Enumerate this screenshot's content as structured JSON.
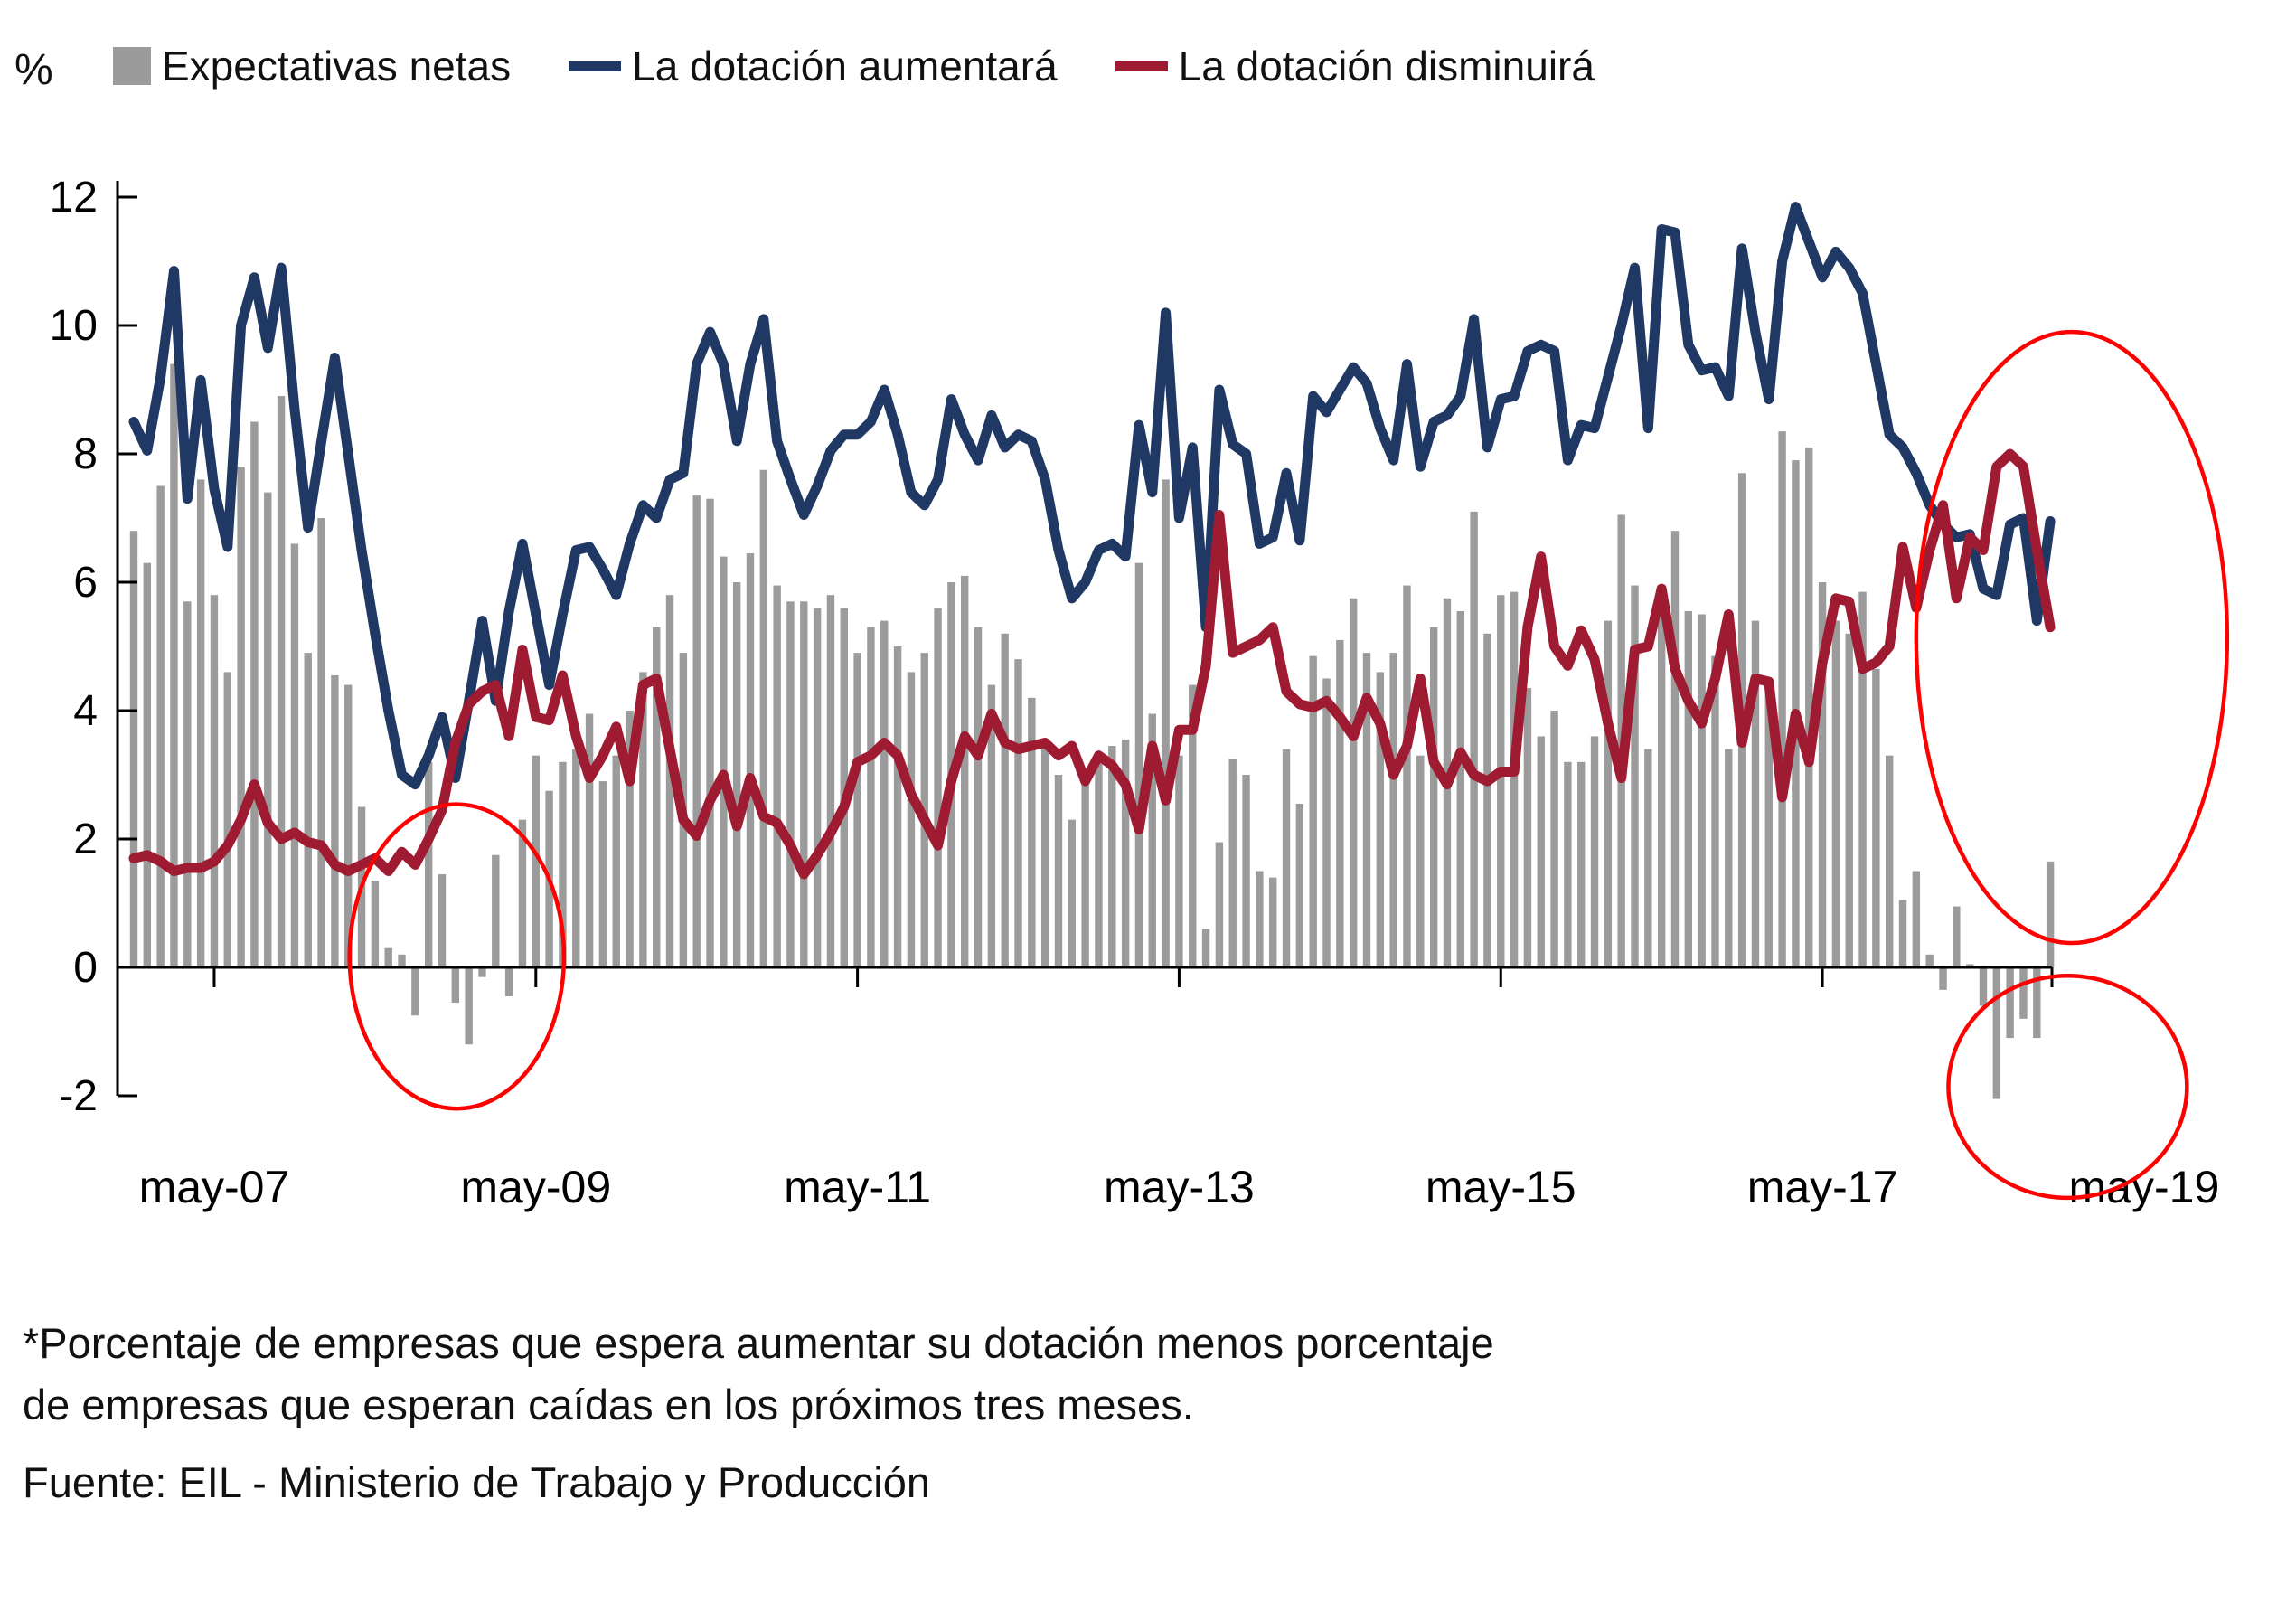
{
  "legend": {
    "percent_label": "%",
    "items": [
      {
        "label": "Expectativas netas",
        "type": "bar",
        "color": "#9B9B9B"
      },
      {
        "label": "La dotación aumentará",
        "type": "line",
        "color": "#1F3864"
      },
      {
        "label": "La dotación disminuirá",
        "type": "line",
        "color": "#9E1B32"
      }
    ]
  },
  "footnote_line1": "*Porcentaje de empresas que espera aumentar su dotación menos porcentaje",
  "footnote_line2": "de empresas que esperan caídas en los próximos tres meses.",
  "source_line": "Fuente: EIL - Ministerio de Trabajo y Producción",
  "chart_data": {
    "type": "bar",
    "subtype": "combo-bar-and-lines",
    "frequency": "monthly",
    "start_month": "2006-11",
    "n_points": 144,
    "x_axis_tick_labels": [
      "may-07",
      "may-09",
      "may-11",
      "may-13",
      "may-15",
      "may-17",
      "may-19"
    ],
    "x_axis_tick_month_indices": [
      6,
      30,
      54,
      78,
      102,
      126,
      150
    ],
    "y_ticks": [
      12,
      10,
      8,
      6,
      4,
      2,
      0,
      -2
    ],
    "ylim": [
      -2.4,
      12.3
    ],
    "grid": false,
    "legend_position": "top",
    "axis_color": "#000000",
    "annotation_color": "#FF0000",
    "series": [
      {
        "name": "Expectativas netas",
        "type": "bar",
        "color": "#9B9B9B",
        "values": [
          6.8,
          6.3,
          7.5,
          9.4,
          5.7,
          7.6,
          5.8,
          4.6,
          7.8,
          8.5,
          7.4,
          8.9,
          6.6,
          4.9,
          7.0,
          4.55,
          4.4,
          2.5,
          1.35,
          0.3,
          0.2,
          -0.75,
          3.2,
          1.45,
          -0.55,
          -1.2,
          -0.15,
          1.75,
          -0.45,
          2.3,
          3.3,
          2.75,
          3.2,
          3.4,
          3.95,
          2.9,
          3.3,
          4.0,
          4.6,
          5.3,
          5.8,
          4.9,
          7.35,
          7.3,
          6.4,
          6.0,
          6.45,
          7.75,
          5.95,
          5.7,
          5.7,
          5.6,
          5.8,
          5.6,
          4.9,
          5.3,
          5.4,
          5.0,
          4.6,
          4.9,
          5.6,
          6.0,
          6.1,
          5.3,
          4.4,
          5.2,
          4.8,
          4.2,
          3.5,
          3.0,
          2.3,
          3.1,
          3.2,
          3.45,
          3.55,
          6.3,
          3.95,
          7.6,
          3.3,
          4.4,
          0.6,
          1.95,
          3.25,
          3.0,
          1.5,
          1.4,
          3.4,
          2.55,
          4.85,
          4.5,
          5.1,
          5.75,
          4.9,
          4.6,
          4.9,
          5.95,
          3.3,
          5.3,
          5.75,
          5.55,
          7.1,
          5.2,
          5.8,
          5.85,
          4.35,
          3.6,
          4.0,
          3.2,
          3.2,
          3.6,
          5.4,
          7.05,
          5.95,
          3.4,
          5.6,
          6.8,
          5.55,
          5.5,
          4.85,
          3.4,
          7.7,
          5.4,
          4.4,
          8.35,
          7.9,
          8.1,
          6.0,
          5.4,
          5.2,
          5.85,
          4.65,
          3.3,
          1.05,
          1.5,
          0.2,
          -0.35,
          0.95,
          0.05,
          -0.6,
          -2.05,
          -1.1,
          -0.8,
          -1.1,
          1.65
        ]
      },
      {
        "name": "La dotación aumentará",
        "type": "line",
        "color": "#1F3864",
        "values": [
          8.5,
          8.05,
          9.2,
          10.85,
          7.3,
          9.15,
          7.45,
          6.55,
          10.0,
          10.75,
          9.65,
          10.9,
          8.7,
          6.85,
          8.2,
          9.5,
          8.0,
          6.5,
          5.2,
          4.0,
          3.0,
          2.85,
          3.3,
          3.9,
          2.95,
          4.15,
          5.4,
          4.15,
          5.55,
          6.6,
          5.5,
          4.4,
          5.5,
          6.5,
          6.55,
          6.2,
          5.8,
          6.6,
          7.2,
          7.0,
          7.6,
          7.7,
          9.4,
          9.9,
          9.4,
          8.2,
          9.4,
          10.1,
          8.2,
          7.6,
          7.05,
          7.5,
          8.05,
          8.3,
          8.3,
          8.5,
          9.0,
          8.3,
          7.4,
          7.2,
          7.6,
          8.85,
          8.3,
          7.9,
          8.6,
          8.1,
          8.3,
          8.2,
          7.6,
          6.5,
          5.75,
          6.0,
          6.5,
          6.6,
          6.4,
          8.45,
          7.4,
          10.2,
          7.0,
          8.1,
          5.3,
          9.0,
          8.15,
          8.0,
          6.6,
          6.7,
          7.7,
          6.65,
          8.9,
          8.65,
          9.0,
          9.35,
          9.1,
          8.4,
          7.9,
          9.4,
          7.8,
          8.5,
          8.6,
          8.9,
          10.1,
          8.1,
          8.85,
          8.9,
          9.6,
          9.7,
          9.6,
          7.9,
          8.45,
          8.4,
          9.2,
          10.0,
          10.9,
          8.4,
          11.5,
          11.45,
          9.7,
          9.3,
          9.35,
          8.9,
          11.2,
          9.9,
          8.85,
          11.0,
          11.85,
          11.3,
          10.75,
          11.15,
          10.9,
          10.5,
          9.4,
          8.3,
          8.1,
          7.7,
          7.2,
          6.9,
          6.7,
          6.75,
          5.9,
          5.8,
          6.9,
          7.0,
          5.4,
          6.95
        ]
      },
      {
        "name": "La dotación disminuirá",
        "type": "line",
        "color": "#9E1B32",
        "values": [
          1.7,
          1.75,
          1.65,
          1.5,
          1.55,
          1.55,
          1.65,
          1.9,
          2.3,
          2.85,
          2.25,
          2.0,
          2.1,
          1.95,
          1.9,
          1.6,
          1.5,
          1.6,
          1.7,
          1.5,
          1.8,
          1.6,
          2.0,
          2.45,
          3.5,
          4.1,
          4.3,
          4.4,
          3.6,
          4.95,
          3.9,
          3.85,
          4.55,
          3.6,
          2.95,
          3.3,
          3.75,
          2.9,
          4.4,
          4.5,
          3.4,
          2.3,
          2.05,
          2.6,
          3.0,
          2.2,
          2.95,
          2.35,
          2.25,
          1.9,
          1.45,
          1.75,
          2.1,
          2.5,
          3.2,
          3.3,
          3.5,
          3.3,
          2.7,
          2.3,
          1.9,
          2.9,
          3.6,
          3.3,
          3.95,
          3.5,
          3.4,
          3.45,
          3.5,
          3.3,
          3.45,
          2.9,
          3.3,
          3.15,
          2.85,
          2.15,
          3.45,
          2.6,
          3.7,
          3.7,
          4.7,
          7.05,
          4.9,
          5.0,
          5.1,
          5.3,
          4.3,
          4.1,
          4.05,
          4.15,
          3.9,
          3.6,
          4.2,
          3.8,
          3.0,
          3.45,
          4.5,
          3.2,
          2.85,
          3.35,
          3.0,
          2.9,
          3.05,
          3.05,
          5.3,
          6.4,
          5.0,
          4.7,
          5.25,
          4.8,
          3.8,
          2.95,
          4.95,
          5.0,
          5.9,
          4.65,
          4.15,
          3.8,
          4.5,
          5.5,
          3.5,
          4.5,
          4.45,
          2.65,
          3.95,
          3.2,
          4.75,
          5.75,
          5.7,
          4.65,
          4.75,
          5.0,
          6.55,
          5.6,
          6.5,
          7.2,
          5.75,
          6.7,
          6.5,
          7.8,
          8.0,
          7.8,
          6.5,
          5.3
        ]
      }
    ],
    "annotations": [
      {
        "shape": "ellipse",
        "note": "negative expectations 2008-2009",
        "cx_month_index": 24.1,
        "cy_value": 0.17,
        "rx_months": 8.0,
        "ry_value": 2.37
      },
      {
        "shape": "ellipse",
        "note": "convergence of lines 2018",
        "cx_month_index": 144.6,
        "cy_value": 5.14,
        "rx_months": 11.6,
        "ry_value": 4.76
      },
      {
        "shape": "ellipse",
        "note": "negative expectations 2018",
        "cx_month_index": 144.3,
        "cy_value": -1.86,
        "rx_months": 8.9,
        "ry_value": 1.73
      }
    ]
  }
}
